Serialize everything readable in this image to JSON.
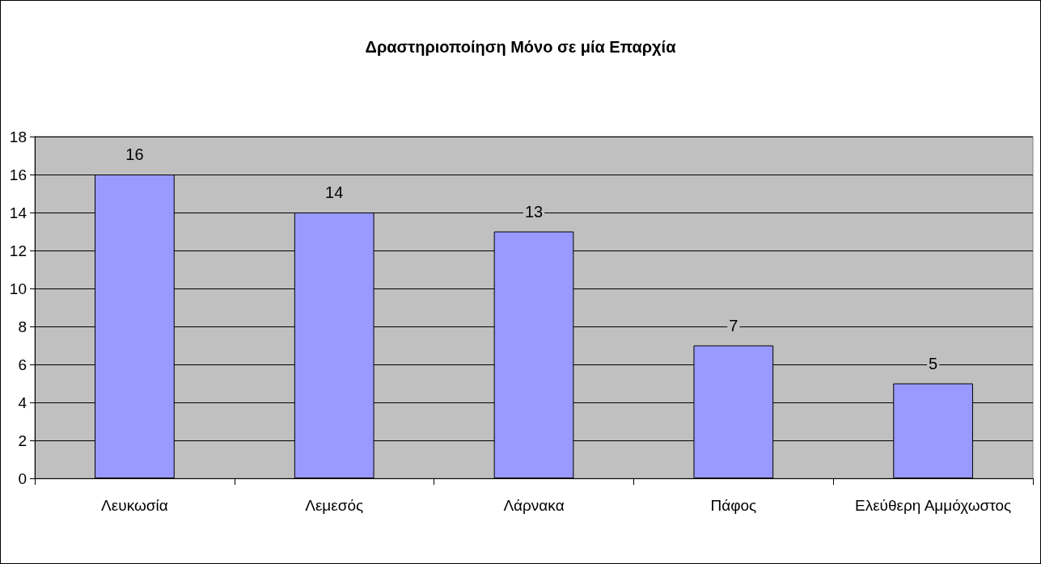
{
  "chart_data": {
    "type": "bar",
    "title": "Δραστηριοποίηση Μόνο σε μία Επαρχία",
    "categories": [
      "Λευκωσία",
      "Λεμεσός",
      "Λάρνακα",
      "Πάφος",
      "Ελεύθερη Αμμόχωστος"
    ],
    "values": [
      16,
      14,
      13,
      7,
      5
    ],
    "color": "#9999ff",
    "ylim": [
      0,
      18
    ],
    "yticks": [
      0,
      2,
      4,
      6,
      8,
      10,
      12,
      14,
      16,
      18
    ],
    "grid": "y",
    "data_labels": true
  }
}
